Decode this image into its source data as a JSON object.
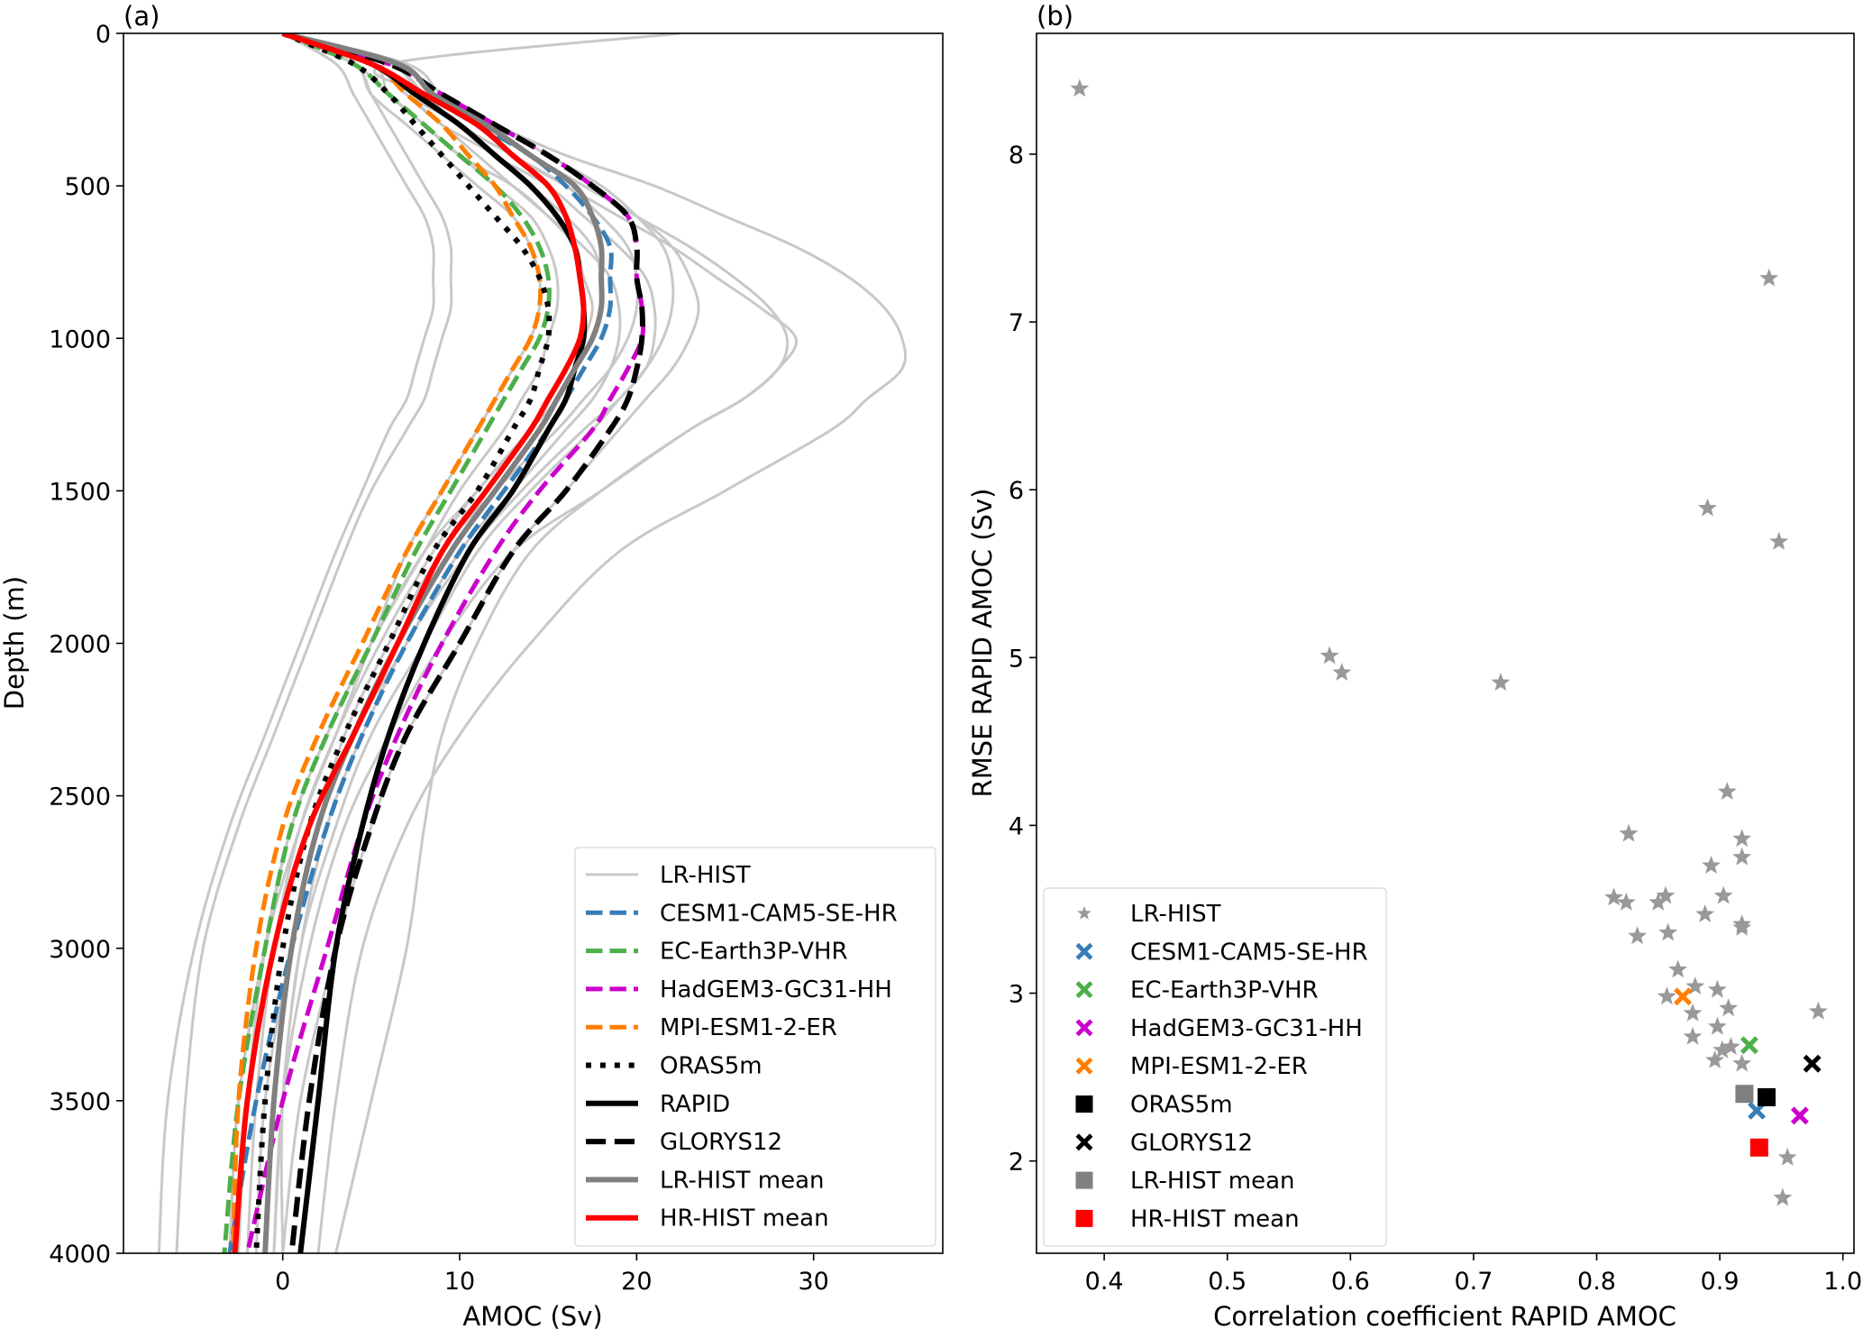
{
  "chart_data": [
    {
      "type": "line",
      "panel_label": "(a)",
      "title": "",
      "xlabel": "AMOC (Sv)",
      "ylabel": "Depth (m)",
      "xlim": [
        -9,
        37.3
      ],
      "ylim": [
        4000,
        0
      ],
      "y_inverted": true,
      "grid": false,
      "xticks": [
        0,
        10,
        20,
        30
      ],
      "yticks": [
        0,
        500,
        1000,
        1500,
        2000,
        2500,
        3000,
        3500,
        4000
      ],
      "legend_position": "lower-right",
      "depth": [
        0,
        100,
        200,
        300,
        400,
        500,
        600,
        700,
        800,
        900,
        1000,
        1100,
        1200,
        1300,
        1500,
        1700,
        2000,
        2300,
        2600,
        3000,
        3500,
        4000
      ],
      "series": [
        {
          "name": "LR-HIST",
          "color": "#c8c8c8",
          "style": "solid",
          "ensemble": true,
          "members": [
            [
              0,
              5,
              7,
              9,
              11,
              13,
              15,
              17,
              18.5,
              19,
              19,
              18.5,
              17.5,
              16,
              13,
              10,
              7,
              4,
              2,
              0.5,
              -1,
              -1.5
            ],
            [
              0,
              6,
              8,
              11,
              13,
              16,
              19,
              22,
              24.5,
              27,
              29,
              28,
              26,
              23,
              18,
              13,
              9,
              6,
              3.5,
              1.5,
              0,
              -0.5
            ],
            [
              0,
              6,
              8,
              12,
              16,
              21,
              25,
              29,
              32,
              34,
              35,
              35,
              33,
              31,
              25,
              19,
              14,
              10,
              7,
              4.5,
              3,
              2
            ],
            [
              22.5,
              6,
              8,
              11,
              14,
              17,
              20,
              23,
              25.5,
              27.5,
              28.5,
              28,
              26,
              23,
              18,
              14,
              11,
              9,
              8,
              7,
              5,
              3
            ],
            [
              0,
              4,
              5,
              7,
              9,
              11,
              13,
              14,
              14.5,
              14.5,
              14,
              13,
              12,
              11,
              9,
              7,
              5,
              3,
              1,
              -1,
              -2.5,
              -3
            ],
            [
              0,
              3,
              4,
              5,
              6,
              7,
              8,
              8.5,
              8.5,
              8.5,
              8,
              7.5,
              7,
              6,
              4.5,
              3,
              1,
              -1,
              -3,
              -5,
              -6.5,
              -7
            ],
            [
              0,
              4,
              5,
              6,
              7,
              8,
              9,
              9.5,
              9.5,
              9.5,
              9,
              8.5,
              8,
              7,
              5,
              3.5,
              1.5,
              -0.5,
              -2.5,
              -4.5,
              -5.5,
              -6
            ],
            [
              0,
              5,
              7,
              10,
              12,
              15,
              17,
              19,
              20.5,
              21,
              21,
              20.5,
              19,
              17.5,
              14,
              11,
              8,
              5,
              3,
              1,
              0,
              -0.5
            ],
            [
              0,
              5,
              7,
              9,
              12,
              14,
              16,
              17.5,
              18,
              18,
              17.5,
              16.5,
              15.5,
              14,
              11,
              8.5,
              5.5,
              3,
              1,
              -0.5,
              -1.5,
              -2
            ],
            [
              0,
              6,
              8,
              10,
              13,
              16,
              18,
              19.5,
              20,
              20,
              19.5,
              18.5,
              17,
              15.5,
              12,
              9,
              6,
              3.5,
              2,
              0.5,
              -0.5,
              -1
            ],
            [
              0,
              6,
              8,
              11,
              14,
              17,
              20,
              22,
              23,
              23.5,
              23,
              22,
              20.5,
              19,
              16,
              13,
              10,
              7,
              5,
              3,
              1,
              0
            ],
            [
              0,
              5,
              6,
              8,
              10,
              12,
              14,
              15,
              15.5,
              15.5,
              15,
              14.5,
              13.5,
              12.5,
              10,
              8,
              5,
              2.5,
              0.5,
              -1,
              -2.5,
              -3
            ],
            [
              0,
              4,
              6,
              8,
              10,
              13,
              15,
              16.5,
              17,
              17.5,
              17,
              16,
              15,
              14,
              11,
              8,
              5,
              2.5,
              0.5,
              -1,
              -2,
              -2.5
            ],
            [
              0,
              7,
              9,
              12,
              15,
              18,
              20,
              21.5,
              22,
              22,
              21.5,
              20.5,
              19,
              17,
              13.5,
              10.5,
              7,
              4.5,
              2.5,
              1,
              0,
              0
            ]
          ]
        },
        {
          "name": "CESM1-CAM5-SE-HR",
          "color": "#377eb8",
          "style": "dashed",
          "values": [
            0,
            5,
            8,
            11,
            14,
            16,
            17.5,
            18.5,
            18.5,
            18.5,
            18,
            17,
            16,
            15,
            12.5,
            10,
            7,
            4.5,
            2.5,
            0.5,
            -1.5,
            -3
          ]
        },
        {
          "name": "EC-Earth3P-VHR",
          "color": "#4daf4a",
          "style": "dashed",
          "values": [
            0,
            4,
            6,
            8,
            10,
            12,
            13.5,
            14.5,
            15,
            15,
            14.5,
            13.5,
            12.5,
            11.5,
            9.5,
            7.5,
            5,
            2.5,
            0.5,
            -1,
            -2.5,
            -3.3
          ]
        },
        {
          "name": "HadGEM3-GC31-HH",
          "color": "#cc00cc",
          "style": "dashed",
          "values": [
            0,
            6,
            9,
            12,
            15,
            17.5,
            19.5,
            20,
            20,
            20.3,
            20.3,
            19.5,
            18.5,
            17.5,
            14.5,
            12,
            9,
            6.5,
            4.5,
            2.5,
            0,
            -2
          ]
        },
        {
          "name": "MPI-ESM1-2-ER",
          "color": "#ff7f00",
          "style": "dashed",
          "values": [
            0,
            5,
            7,
            9,
            10.5,
            12,
            13,
            14,
            14.5,
            14.5,
            14,
            13,
            12,
            11,
            9,
            7,
            4.5,
            2,
            0,
            -1.5,
            -2.5,
            -2.8
          ]
        },
        {
          "name": "ORAS5m",
          "color": "#000000",
          "style": "dotted",
          "values": [
            0,
            4,
            6,
            7.5,
            9,
            10.5,
            12,
            13.5,
            14.5,
            15,
            15,
            14.5,
            14,
            13,
            11,
            8.5,
            6,
            3.5,
            1.5,
            0,
            -1,
            -1.5
          ]
        },
        {
          "name": "RAPID",
          "color": "#000000",
          "style": "solid",
          "values": [
            0,
            5,
            7.5,
            10,
            12,
            14,
            15.5,
            16.5,
            16.8,
            17,
            17,
            16.5,
            16,
            15,
            13,
            10.5,
            8,
            6,
            4.5,
            3,
            2,
            1
          ]
        },
        {
          "name": "GLORYS12",
          "color": "#000000",
          "style": "dashed",
          "values": [
            0,
            6,
            9,
            12,
            15,
            17.5,
            19.5,
            20,
            20,
            20.3,
            20.3,
            20,
            19.5,
            18.5,
            16,
            13,
            10,
            7,
            5,
            3,
            1.5,
            0.5
          ]
        },
        {
          "name": "LR-HIST mean",
          "color": "#808080",
          "style": "solid",
          "values": [
            0,
            6.5,
            8.5,
            11.5,
            14,
            16.5,
            17.5,
            18,
            18,
            18,
            17.5,
            16.5,
            15.5,
            14.5,
            12,
            9.5,
            6.5,
            4,
            2,
            0.5,
            -0.5,
            -1
          ]
        },
        {
          "name": "HR-HIST mean",
          "color": "#ff0000",
          "style": "solid",
          "values": [
            0,
            5,
            8,
            11,
            13,
            15,
            16,
            16.5,
            16.8,
            17,
            16.8,
            16,
            15,
            14,
            11.5,
            9,
            6.5,
            4,
            1.5,
            -0.5,
            -2,
            -2.7
          ]
        }
      ]
    },
    {
      "type": "scatter",
      "panel_label": "(b)",
      "title": "",
      "xlabel": "Correlation coefficient RAPID AMOC",
      "ylabel": "RMSE RAPID AMOC (Sv)",
      "xlim": [
        0.345,
        1.009
      ],
      "ylim": [
        1.45,
        8.72
      ],
      "grid": false,
      "xticks": [
        0.4,
        0.5,
        0.6,
        0.7,
        0.8,
        0.9,
        1.0
      ],
      "xtick_labels": [
        "0.4",
        "0.5",
        "0.6",
        "0.7",
        "0.8",
        "0.9",
        "1.0"
      ],
      "yticks": [
        2,
        3,
        4,
        5,
        6,
        7,
        8
      ],
      "legend_position": "lower-left",
      "series": [
        {
          "name": "LR-HIST",
          "color": "#999999",
          "marker": "star",
          "points": [
            [
              0.38,
              8.39
            ],
            [
              0.94,
              7.26
            ],
            [
              0.89,
              5.89
            ],
            [
              0.948,
              5.69
            ],
            [
              0.583,
              5.01
            ],
            [
              0.593,
              4.91
            ],
            [
              0.722,
              4.85
            ],
            [
              0.906,
              4.2
            ],
            [
              0.826,
              3.95
            ],
            [
              0.918,
              3.92
            ],
            [
              0.918,
              3.81
            ],
            [
              0.893,
              3.76
            ],
            [
              0.903,
              3.58
            ],
            [
              0.856,
              3.58
            ],
            [
              0.814,
              3.57
            ],
            [
              0.85,
              3.54
            ],
            [
              0.824,
              3.54
            ],
            [
              0.888,
              3.47
            ],
            [
              0.918,
              3.41
            ],
            [
              0.918,
              3.39
            ],
            [
              0.858,
              3.36
            ],
            [
              0.833,
              3.34
            ],
            [
              0.866,
              3.14
            ],
            [
              0.88,
              3.04
            ],
            [
              0.898,
              3.02
            ],
            [
              0.857,
              2.98
            ],
            [
              0.907,
              2.91
            ],
            [
              0.878,
              2.88
            ],
            [
              0.898,
              2.8
            ],
            [
              0.878,
              2.74
            ],
            [
              0.909,
              2.68
            ],
            [
              0.902,
              2.66
            ],
            [
              0.896,
              2.6
            ],
            [
              0.918,
              2.58
            ],
            [
              0.98,
              2.89
            ],
            [
              0.955,
              2.02
            ],
            [
              0.951,
              1.78
            ]
          ]
        },
        {
          "name": "CESM1-CAM5-SE-HR",
          "color": "#377eb8",
          "marker": "x-filled",
          "points": [
            [
              0.93,
              2.3
            ]
          ]
        },
        {
          "name": "EC-Earth3P-VHR",
          "color": "#4daf4a",
          "marker": "x-filled",
          "points": [
            [
              0.924,
              2.69
            ]
          ]
        },
        {
          "name": "HadGEM3-GC31-HH",
          "color": "#cc00cc",
          "marker": "x-filled",
          "points": [
            [
              0.965,
              2.27
            ]
          ]
        },
        {
          "name": "MPI-ESM1-2-ER",
          "color": "#ff7f00",
          "marker": "x-filled",
          "points": [
            [
              0.87,
              2.98
            ]
          ]
        },
        {
          "name": "ORAS5m",
          "color": "#000000",
          "marker": "square",
          "points": [
            [
              0.938,
              2.38
            ]
          ]
        },
        {
          "name": "GLORYS12",
          "color": "#000000",
          "marker": "x-filled",
          "points": [
            [
              0.975,
              2.58
            ]
          ]
        },
        {
          "name": "LR-HIST mean",
          "color": "#808080",
          "marker": "square",
          "points": [
            [
              0.92,
              2.4
            ]
          ]
        },
        {
          "name": "HR-HIST mean",
          "color": "#ff0000",
          "marker": "square",
          "points": [
            [
              0.932,
              2.08
            ]
          ]
        }
      ]
    }
  ]
}
